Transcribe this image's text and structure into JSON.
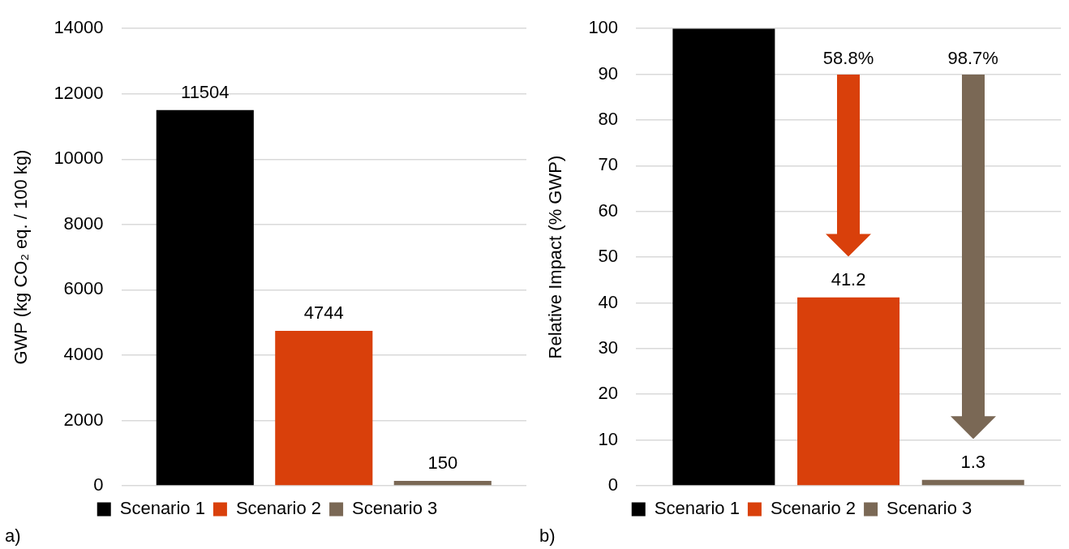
{
  "chart_data": [
    {
      "type": "bar",
      "ylabel": "GWP (kg CO₂ eq. / 100 kg)",
      "categories": [
        null
      ],
      "series": [
        {
          "name": "Scenario 1",
          "color": "#000000",
          "values": [
            11504
          ]
        },
        {
          "name": "Scenario 2",
          "color": "#d9400b",
          "values": [
            4744
          ]
        },
        {
          "name": "Scenario 3",
          "color": "#7a6855",
          "values": [
            150
          ]
        }
      ],
      "ylim": [
        0,
        14000
      ],
      "yticks": [
        0,
        2000,
        4000,
        6000,
        8000,
        10000,
        12000,
        14000
      ],
      "grid": "y",
      "legend": "bottom",
      "tick_labels": "y",
      "data_labels": true,
      "annotations": [
        "a)"
      ]
    },
    {
      "type": "bar",
      "ylabel": "Relative Impact (% GWP)",
      "categories": [
        null
      ],
      "series": [
        {
          "name": "Scenario 1",
          "color": "#000000",
          "values": [
            100
          ],
          "value_labels": [
            null
          ]
        },
        {
          "name": "Scenario 2",
          "color": "#d9400b",
          "values": [
            41.2
          ],
          "value_labels": [
            "41.2"
          ]
        },
        {
          "name": "Scenario 3",
          "color": "#7a6855",
          "values": [
            1.3
          ],
          "value_labels": [
            "1.3"
          ]
        }
      ],
      "ylim": [
        0,
        100
      ],
      "yticks": [
        0,
        10,
        20,
        30,
        40,
        50,
        60,
        70,
        80,
        90,
        100
      ],
      "grid": "y",
      "legend": "bottom",
      "tick_labels": "y",
      "annotations": [
        "58.8%",
        "98.7%",
        "b)"
      ]
    }
  ]
}
